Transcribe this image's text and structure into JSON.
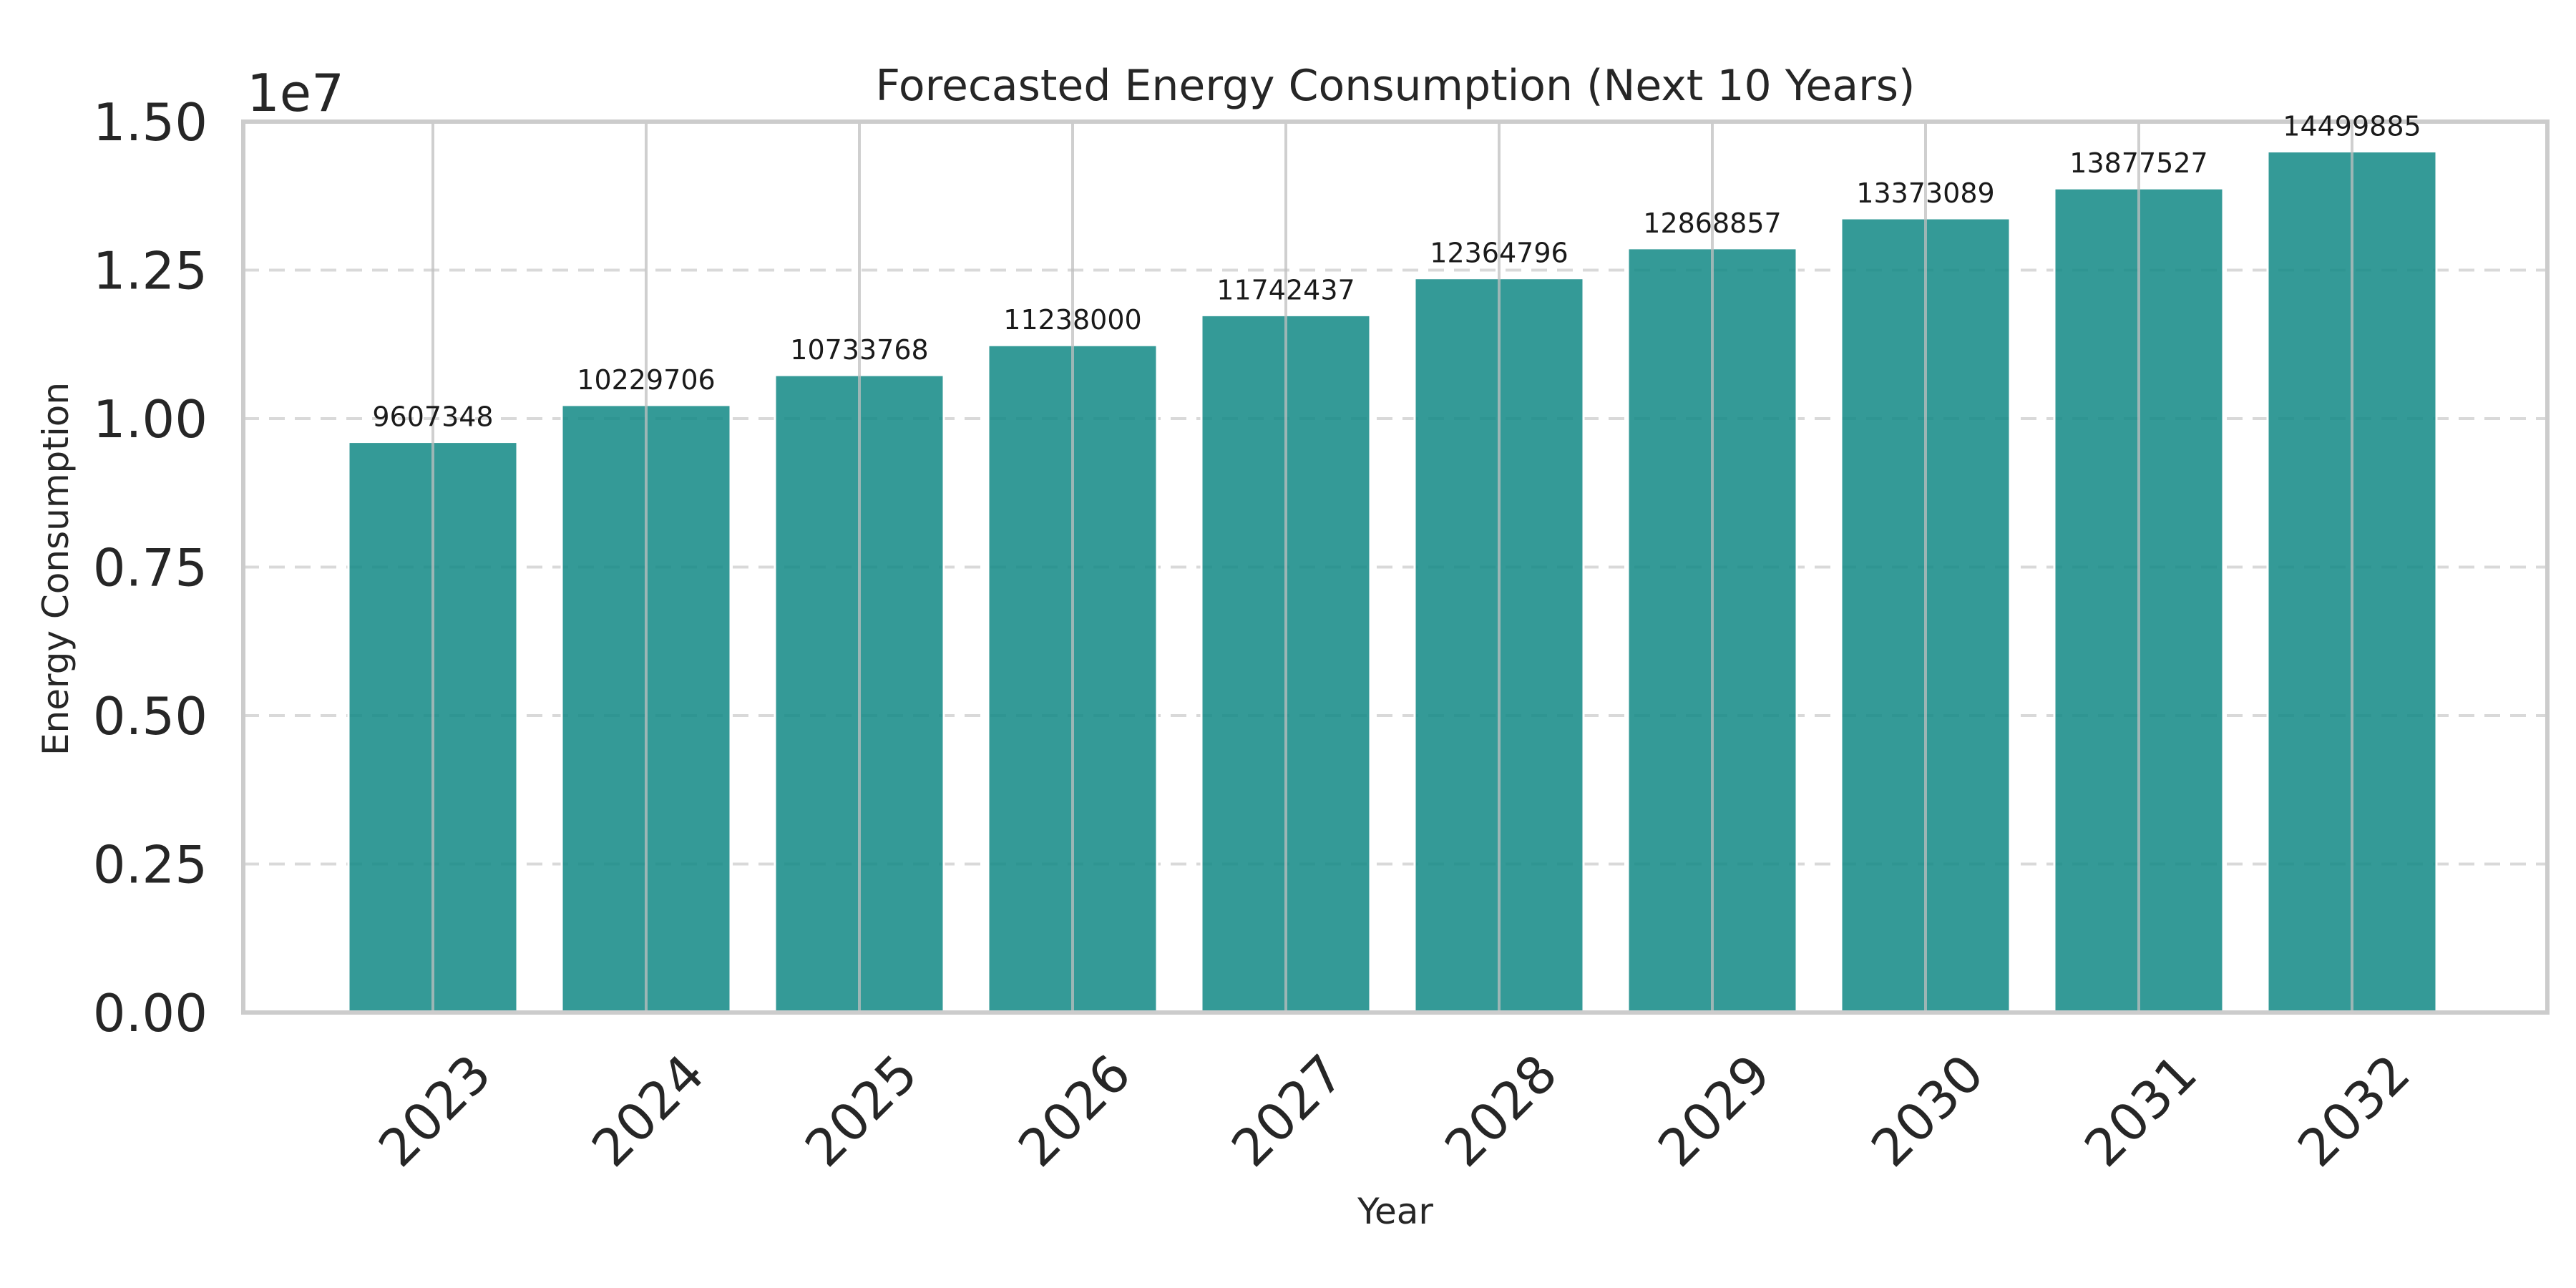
{
  "chart_data": {
    "type": "bar",
    "title": "Forecasted Energy Consumption (Next 10 Years)",
    "xlabel": "Year",
    "ylabel": "Energy Consumption",
    "y_scale_label": "1e7",
    "categories": [
      "2023",
      "2024",
      "2025",
      "2026",
      "2027",
      "2028",
      "2029",
      "2030",
      "2031",
      "2032"
    ],
    "values": [
      9607348,
      10229706,
      10733768,
      11238000,
      11742437,
      12364796,
      12868857,
      13373089,
      13877527,
      14499885
    ],
    "data_labels": [
      "9607348",
      "10229706",
      "10733768",
      "11238000",
      "11742437",
      "12364796",
      "12868857",
      "13373089",
      "13877527",
      "14499885"
    ],
    "ylim": [
      0,
      15000000
    ],
    "yticks": [
      0,
      2500000,
      5000000,
      7500000,
      10000000,
      12500000,
      15000000
    ],
    "ytick_labels": [
      "0.00",
      "0.25",
      "0.50",
      "0.75",
      "1.00",
      "1.25",
      "1.50"
    ],
    "bar_color": "#168b87",
    "grid": true,
    "grid_style": "dashed-horizontal"
  }
}
